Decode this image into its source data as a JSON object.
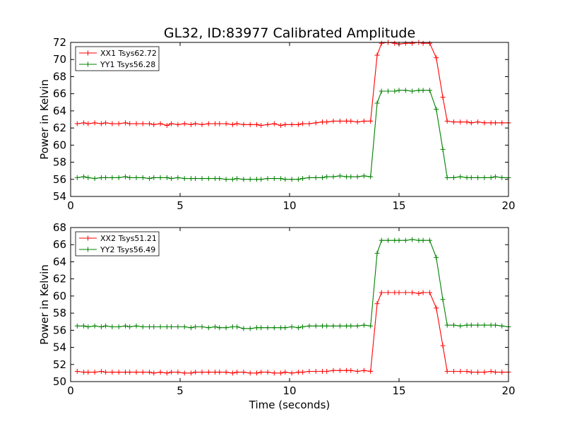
{
  "chart_data": {
    "title": "GL32, ID:83977 Calibrated Amplitude",
    "xlabel": "Time (seconds)",
    "colors": {
      "red": "#ff0000",
      "green": "#008000"
    },
    "panels": [
      {
        "type": "line",
        "ylabel": "Power in Kelvin",
        "xlim": [
          0,
          20
        ],
        "ylim": [
          54,
          72
        ],
        "xticks": [
          0,
          5,
          10,
          15,
          20
        ],
        "yticks": [
          54,
          56,
          58,
          60,
          62,
          64,
          66,
          68,
          70,
          72
        ],
        "legend_position": "upper-left",
        "series": [
          {
            "name": "XX1 Tsys62.72",
            "color": "red",
            "x": [
              0.3,
              0.6,
              0.8,
              1.1,
              1.4,
              1.6,
              1.9,
              2.2,
              2.5,
              2.7,
              3.0,
              3.3,
              3.6,
              3.8,
              4.1,
              4.4,
              4.6,
              4.9,
              5.2,
              5.5,
              5.7,
              6.0,
              6.3,
              6.6,
              6.8,
              7.1,
              7.4,
              7.6,
              7.9,
              8.2,
              8.5,
              8.7,
              9.0,
              9.3,
              9.6,
              9.8,
              10.1,
              10.4,
              10.6,
              10.9,
              11.2,
              11.5,
              11.7,
              12.0,
              12.3,
              12.6,
              12.8,
              13.1,
              13.4,
              13.7,
              14.0,
              14.2,
              14.5,
              14.8,
              15.0,
              15.3,
              15.6,
              15.9,
              16.1,
              16.4,
              16.7,
              17.0,
              17.2,
              17.5,
              17.8,
              18.1,
              18.3,
              18.6,
              18.9,
              19.2,
              19.4,
              19.7,
              20.0
            ],
            "y": [
              62.5,
              62.6,
              62.5,
              62.6,
              62.5,
              62.6,
              62.5,
              62.5,
              62.6,
              62.5,
              62.5,
              62.5,
              62.5,
              62.4,
              62.5,
              62.3,
              62.5,
              62.4,
              62.5,
              62.4,
              62.5,
              62.4,
              62.5,
              62.5,
              62.5,
              62.5,
              62.4,
              62.5,
              62.4,
              62.4,
              62.4,
              62.3,
              62.4,
              62.5,
              62.3,
              62.4,
              62.4,
              62.4,
              62.5,
              62.5,
              62.6,
              62.7,
              62.7,
              62.8,
              62.8,
              62.8,
              62.8,
              62.7,
              62.8,
              62.8,
              70.5,
              71.9,
              72.0,
              71.9,
              71.8,
              71.9,
              71.9,
              72.0,
              71.9,
              71.9,
              70.2,
              65.6,
              62.8,
              62.7,
              62.7,
              62.7,
              62.6,
              62.7,
              62.6,
              62.6,
              62.6,
              62.6,
              62.6
            ]
          },
          {
            "name": "YY1 Tsys56.28",
            "color": "green",
            "x": [
              0.3,
              0.6,
              0.8,
              1.1,
              1.4,
              1.6,
              1.9,
              2.2,
              2.5,
              2.7,
              3.0,
              3.3,
              3.6,
              3.8,
              4.1,
              4.4,
              4.6,
              4.9,
              5.2,
              5.5,
              5.7,
              6.0,
              6.3,
              6.6,
              6.8,
              7.1,
              7.4,
              7.6,
              7.9,
              8.2,
              8.5,
              8.7,
              9.0,
              9.3,
              9.6,
              9.8,
              10.1,
              10.4,
              10.6,
              10.9,
              11.2,
              11.5,
              11.7,
              12.0,
              12.3,
              12.6,
              12.8,
              13.1,
              13.4,
              13.7,
              14.0,
              14.2,
              14.5,
              14.8,
              15.0,
              15.3,
              15.6,
              15.9,
              16.1,
              16.4,
              16.7,
              17.0,
              17.2,
              17.5,
              17.8,
              18.1,
              18.3,
              18.6,
              18.9,
              19.2,
              19.4,
              19.7,
              20.0
            ],
            "y": [
              56.2,
              56.3,
              56.2,
              56.1,
              56.2,
              56.2,
              56.2,
              56.2,
              56.3,
              56.2,
              56.2,
              56.2,
              56.1,
              56.2,
              56.2,
              56.2,
              56.1,
              56.2,
              56.1,
              56.1,
              56.1,
              56.1,
              56.1,
              56.1,
              56.1,
              56.0,
              56.0,
              56.1,
              56.0,
              56.0,
              56.0,
              56.0,
              56.1,
              56.1,
              56.1,
              56.0,
              56.0,
              56.0,
              56.1,
              56.2,
              56.2,
              56.2,
              56.3,
              56.3,
              56.4,
              56.3,
              56.3,
              56.3,
              56.4,
              56.3,
              64.9,
              66.3,
              66.3,
              66.3,
              66.4,
              66.4,
              66.3,
              66.4,
              66.4,
              66.4,
              64.2,
              59.5,
              56.2,
              56.2,
              56.3,
              56.2,
              56.2,
              56.2,
              56.2,
              56.2,
              56.3,
              56.2,
              56.2
            ]
          }
        ]
      },
      {
        "type": "line",
        "ylabel": "Power in Kelvin",
        "xlabel": "Time (seconds)",
        "xlim": [
          0,
          20
        ],
        "ylim": [
          50,
          68
        ],
        "xticks": [
          0,
          5,
          10,
          15,
          20
        ],
        "yticks": [
          50,
          52,
          54,
          56,
          58,
          60,
          62,
          64,
          66,
          68
        ],
        "legend_position": "upper-left",
        "series": [
          {
            "name": "XX2 Tsys51.21",
            "color": "red",
            "x": [
              0.3,
              0.6,
              0.8,
              1.1,
              1.4,
              1.6,
              1.9,
              2.2,
              2.5,
              2.7,
              3.0,
              3.3,
              3.6,
              3.8,
              4.1,
              4.4,
              4.6,
              4.9,
              5.2,
              5.5,
              5.7,
              6.0,
              6.3,
              6.6,
              6.8,
              7.1,
              7.4,
              7.6,
              7.9,
              8.2,
              8.5,
              8.7,
              9.0,
              9.3,
              9.6,
              9.8,
              10.1,
              10.4,
              10.6,
              10.9,
              11.2,
              11.5,
              11.7,
              12.0,
              12.3,
              12.6,
              12.8,
              13.1,
              13.4,
              13.7,
              14.0,
              14.2,
              14.5,
              14.8,
              15.0,
              15.3,
              15.6,
              15.9,
              16.1,
              16.4,
              16.7,
              17.0,
              17.2,
              17.5,
              17.8,
              18.1,
              18.3,
              18.6,
              18.9,
              19.2,
              19.4,
              19.7,
              20.0
            ],
            "y": [
              51.2,
              51.1,
              51.1,
              51.1,
              51.2,
              51.1,
              51.1,
              51.1,
              51.1,
              51.1,
              51.1,
              51.1,
              51.1,
              51.0,
              51.1,
              51.0,
              51.1,
              51.1,
              51.0,
              51.0,
              51.1,
              51.1,
              51.1,
              51.1,
              51.1,
              51.1,
              51.0,
              51.1,
              51.1,
              51.0,
              51.0,
              51.1,
              51.1,
              51.0,
              51.0,
              51.1,
              51.0,
              51.1,
              51.1,
              51.2,
              51.2,
              51.2,
              51.2,
              51.3,
              51.3,
              51.3,
              51.3,
              51.2,
              51.3,
              51.2,
              59.1,
              60.4,
              60.4,
              60.4,
              60.4,
              60.4,
              60.4,
              60.3,
              60.4,
              60.4,
              58.6,
              54.2,
              51.2,
              51.2,
              51.2,
              51.2,
              51.1,
              51.1,
              51.1,
              51.2,
              51.1,
              51.1,
              51.1
            ]
          },
          {
            "name": "YY2 Tsys56.49",
            "color": "green",
            "x": [
              0.3,
              0.6,
              0.8,
              1.1,
              1.4,
              1.6,
              1.9,
              2.2,
              2.5,
              2.7,
              3.0,
              3.3,
              3.6,
              3.8,
              4.1,
              4.4,
              4.6,
              4.9,
              5.2,
              5.5,
              5.7,
              6.0,
              6.3,
              6.6,
              6.8,
              7.1,
              7.4,
              7.6,
              7.9,
              8.2,
              8.5,
              8.7,
              9.0,
              9.3,
              9.6,
              9.8,
              10.1,
              10.4,
              10.6,
              10.9,
              11.2,
              11.5,
              11.7,
              12.0,
              12.3,
              12.6,
              12.8,
              13.1,
              13.4,
              13.7,
              14.0,
              14.2,
              14.5,
              14.8,
              15.0,
              15.3,
              15.6,
              15.9,
              16.1,
              16.4,
              16.7,
              17.0,
              17.2,
              17.5,
              17.8,
              18.1,
              18.3,
              18.6,
              18.9,
              19.2,
              19.4,
              19.7,
              20.0
            ],
            "y": [
              56.5,
              56.5,
              56.4,
              56.5,
              56.4,
              56.5,
              56.4,
              56.4,
              56.5,
              56.4,
              56.5,
              56.4,
              56.4,
              56.4,
              56.4,
              56.4,
              56.4,
              56.4,
              56.4,
              56.3,
              56.4,
              56.4,
              56.3,
              56.4,
              56.3,
              56.3,
              56.4,
              56.4,
              56.2,
              56.2,
              56.3,
              56.3,
              56.3,
              56.3,
              56.3,
              56.3,
              56.4,
              56.3,
              56.4,
              56.5,
              56.5,
              56.5,
              56.5,
              56.5,
              56.5,
              56.5,
              56.5,
              56.5,
              56.6,
              56.5,
              65.0,
              66.5,
              66.5,
              66.5,
              66.5,
              66.5,
              66.6,
              66.5,
              66.5,
              66.5,
              64.5,
              59.6,
              56.6,
              56.6,
              56.5,
              56.6,
              56.6,
              56.6,
              56.6,
              56.6,
              56.6,
              56.5,
              56.4
            ]
          }
        ]
      }
    ]
  }
}
